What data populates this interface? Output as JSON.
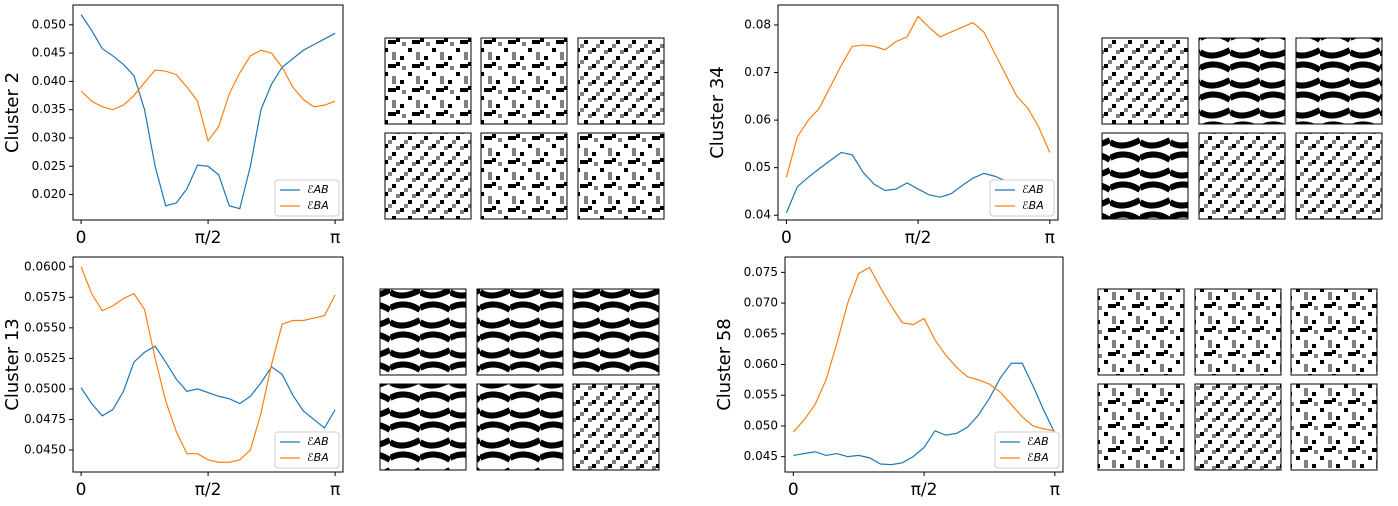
{
  "chart_data": [
    {
      "type": "line",
      "ylabel": "Cluster 2",
      "x": [
        0,
        0.131,
        0.262,
        0.393,
        0.524,
        0.654,
        0.785,
        0.916,
        1.047,
        1.178,
        1.309,
        1.44,
        1.571,
        1.702,
        1.833,
        1.963,
        2.094,
        2.225,
        2.356,
        2.487,
        2.618,
        2.749,
        2.88,
        3.011,
        3.142
      ],
      "series": [
        {
          "name": "ℰAB",
          "color": "#1f77b4",
          "values": [
            0.0518,
            0.049,
            0.0458,
            0.0445,
            0.043,
            0.041,
            0.035,
            0.025,
            0.018,
            0.0185,
            0.021,
            0.0252,
            0.025,
            0.0235,
            0.018,
            0.0175,
            0.025,
            0.035,
            0.0395,
            0.0425,
            0.044,
            0.0455,
            0.0465,
            0.0475,
            0.0485
          ]
        },
        {
          "name": "ℰBA",
          "color": "#ff7f0e",
          "values": [
            0.0383,
            0.0365,
            0.0355,
            0.035,
            0.0358,
            0.0375,
            0.0398,
            0.042,
            0.0418,
            0.0412,
            0.039,
            0.0365,
            0.0295,
            0.032,
            0.0378,
            0.0415,
            0.0445,
            0.0455,
            0.045,
            0.0425,
            0.039,
            0.0368,
            0.0355,
            0.0358,
            0.0365
          ]
        }
      ],
      "xlim": [
        -0.1,
        3.24
      ],
      "xticks": [
        {
          "value": 0,
          "label": "0"
        },
        {
          "value": 1.571,
          "label": "π/2"
        },
        {
          "value": 3.142,
          "label": "π"
        }
      ],
      "ylim": [
        0.0155,
        0.0535
      ],
      "yticks": [
        {
          "value": 0.02,
          "label": "0.020"
        },
        {
          "value": 0.025,
          "label": "0.025"
        },
        {
          "value": 0.03,
          "label": "0.030"
        },
        {
          "value": 0.035,
          "label": "0.035"
        },
        {
          "value": 0.04,
          "label": "0.040"
        },
        {
          "value": 0.045,
          "label": "0.045"
        },
        {
          "value": 0.05,
          "label": "0.050"
        }
      ],
      "legend": "lower right"
    },
    {
      "type": "line",
      "ylabel": "Cluster 13",
      "x": [
        0,
        0.131,
        0.262,
        0.393,
        0.524,
        0.654,
        0.785,
        0.916,
        1.047,
        1.178,
        1.309,
        1.44,
        1.571,
        1.702,
        1.833,
        1.963,
        2.094,
        2.225,
        2.356,
        2.487,
        2.618,
        2.749,
        2.88,
        3.011,
        3.142
      ],
      "series": [
        {
          "name": "ℰAB",
          "color": "#1f77b4",
          "values": [
            0.0501,
            0.0488,
            0.0478,
            0.0483,
            0.0498,
            0.0522,
            0.053,
            0.0535,
            0.0522,
            0.0508,
            0.0498,
            0.05,
            0.0497,
            0.0494,
            0.0492,
            0.0488,
            0.0494,
            0.0505,
            0.0518,
            0.0512,
            0.0495,
            0.0482,
            0.0475,
            0.0468,
            0.0483
          ]
        },
        {
          "name": "ℰBA",
          "color": "#ff7f0e",
          "values": [
            0.06,
            0.0578,
            0.0564,
            0.0568,
            0.0574,
            0.0578,
            0.0565,
            0.0525,
            0.049,
            0.0465,
            0.0447,
            0.0447,
            0.0442,
            0.044,
            0.044,
            0.0442,
            0.045,
            0.048,
            0.052,
            0.0553,
            0.0556,
            0.0556,
            0.0558,
            0.056,
            0.0577
          ]
        }
      ],
      "xlim": [
        -0.1,
        3.24
      ],
      "xticks": [
        {
          "value": 0,
          "label": "0"
        },
        {
          "value": 1.571,
          "label": "π/2"
        },
        {
          "value": 3.142,
          "label": "π"
        }
      ],
      "ylim": [
        0.0432,
        0.0608
      ],
      "yticks": [
        {
          "value": 0.045,
          "label": "0.0450"
        },
        {
          "value": 0.0475,
          "label": "0.0475"
        },
        {
          "value": 0.05,
          "label": "0.0500"
        },
        {
          "value": 0.0525,
          "label": "0.0525"
        },
        {
          "value": 0.055,
          "label": "0.0550"
        },
        {
          "value": 0.0575,
          "label": "0.0575"
        },
        {
          "value": 0.06,
          "label": "0.0600"
        }
      ],
      "legend": "lower right"
    },
    {
      "type": "line",
      "ylabel": "Cluster 34",
      "x": [
        0,
        0.131,
        0.262,
        0.393,
        0.524,
        0.654,
        0.785,
        0.916,
        1.047,
        1.178,
        1.309,
        1.44,
        1.571,
        1.702,
        1.833,
        1.963,
        2.094,
        2.225,
        2.356,
        2.487,
        2.618,
        2.749,
        2.88,
        3.011,
        3.142
      ],
      "series": [
        {
          "name": "ℰAB",
          "color": "#1f77b4",
          "values": [
            0.0405,
            0.046,
            0.048,
            0.0498,
            0.0515,
            0.0532,
            0.0527,
            0.049,
            0.0465,
            0.0452,
            0.0455,
            0.0468,
            0.0455,
            0.0443,
            0.0438,
            0.0445,
            0.0462,
            0.0478,
            0.0488,
            0.0482,
            0.0472,
            0.0462,
            0.0455,
            0.0448,
            0.0442
          ]
        },
        {
          "name": "ℰBA",
          "color": "#ff7f0e",
          "values": [
            0.048,
            0.0565,
            0.06,
            0.0625,
            0.067,
            0.0715,
            0.0755,
            0.0758,
            0.0755,
            0.0748,
            0.0765,
            0.0775,
            0.0818,
            0.0795,
            0.0775,
            0.0785,
            0.0795,
            0.0805,
            0.0785,
            0.074,
            0.0695,
            0.065,
            0.0625,
            0.0585,
            0.0532
          ]
        }
      ],
      "xlim": [
        -0.1,
        3.24
      ],
      "xticks": [
        {
          "value": 0,
          "label": "0"
        },
        {
          "value": 1.571,
          "label": "π/2"
        },
        {
          "value": 3.142,
          "label": "π"
        }
      ],
      "ylim": [
        0.039,
        0.0842
      ],
      "yticks": [
        0.04,
        0.05,
        0.06,
        0.07,
        0.08
      ],
      "legend": "lower right"
    },
    {
      "type": "line",
      "ylabel": "Cluster 58",
      "x": [
        0,
        0.131,
        0.262,
        0.393,
        0.524,
        0.654,
        0.785,
        0.916,
        1.047,
        1.178,
        1.309,
        1.44,
        1.571,
        1.702,
        1.833,
        1.963,
        2.094,
        2.225,
        2.356,
        2.487,
        2.618,
        2.749,
        2.88,
        3.011,
        3.142
      ],
      "series": [
        {
          "name": "ℰAB",
          "color": "#1f77b4",
          "values": [
            0.0452,
            0.0455,
            0.0458,
            0.0452,
            0.0455,
            0.045,
            0.0452,
            0.0448,
            0.0438,
            0.0437,
            0.044,
            0.045,
            0.0465,
            0.0492,
            0.0485,
            0.0488,
            0.0498,
            0.0518,
            0.0545,
            0.0578,
            0.0602,
            0.0602,
            0.0565,
            0.0525,
            0.0488
          ]
        },
        {
          "name": "ℰBA",
          "color": "#ff7f0e",
          "values": [
            0.049,
            0.051,
            0.0535,
            0.0575,
            0.0635,
            0.07,
            0.0748,
            0.0758,
            0.0725,
            0.0695,
            0.0668,
            0.0665,
            0.0675,
            0.064,
            0.0615,
            0.0595,
            0.058,
            0.0575,
            0.0568,
            0.0555,
            0.0535,
            0.0515,
            0.05,
            0.0495,
            0.0492
          ]
        }
      ],
      "xlim": [
        -0.1,
        3.24
      ],
      "xticks": [
        {
          "value": 0,
          "label": "0"
        },
        {
          "value": 1.571,
          "label": "π/2"
        },
        {
          "value": 3.142,
          "label": "π"
        }
      ],
      "ylim": [
        0.0425,
        0.0775
      ],
      "yticks": [
        {
          "value": 0.045,
          "label": "0.045"
        },
        {
          "value": 0.05,
          "label": "0.050"
        },
        {
          "value": 0.055,
          "label": "0.055"
        },
        {
          "value": 0.06,
          "label": "0.060"
        },
        {
          "value": 0.065,
          "label": "0.065"
        },
        {
          "value": 0.07,
          "label": "0.070"
        },
        {
          "value": 0.075,
          "label": "0.075"
        }
      ],
      "legend": "lower right"
    }
  ]
}
